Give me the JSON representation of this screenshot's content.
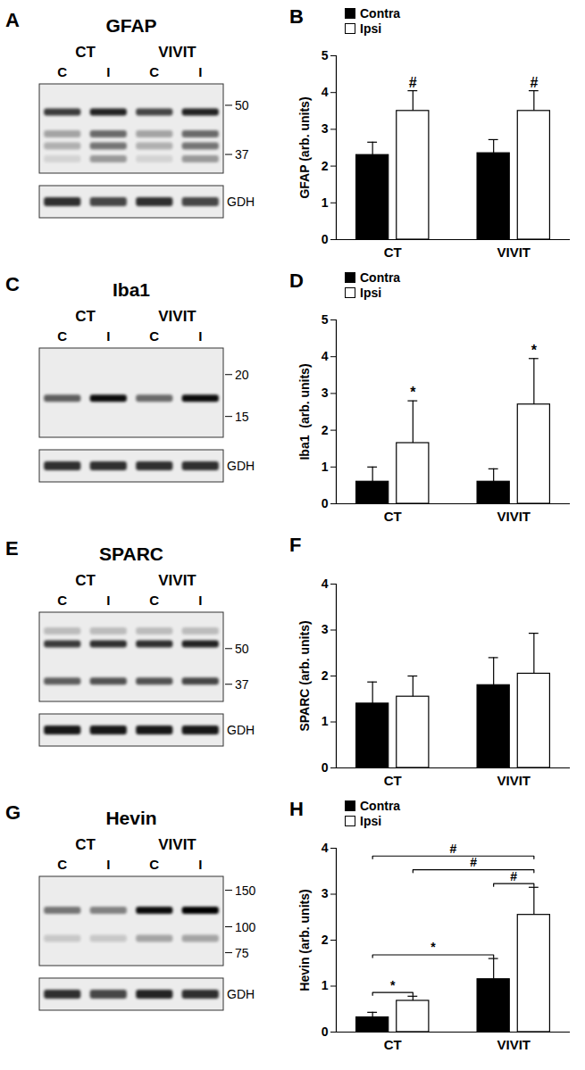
{
  "chart_data": [
    {
      "type": "bar",
      "title": "B",
      "categories": [
        "CT",
        "VIVIT"
      ],
      "series": [
        {
          "name": "Contra",
          "color": "#000000",
          "values": [
            2.3,
            2.35
          ],
          "errors": [
            0.35,
            0.37
          ]
        },
        {
          "name": "Ipsi",
          "color": "#ffffff",
          "values": [
            3.5,
            3.5
          ],
          "errors": [
            0.55,
            0.55
          ]
        }
      ],
      "ylabel": "GFAP (arb. units)",
      "ylim": [
        0,
        5
      ],
      "yticks": [
        0,
        1,
        2,
        3,
        4,
        5
      ],
      "legend": "top-left",
      "annotations": [
        {
          "text": "#",
          "category": 0,
          "series": 1
        },
        {
          "text": "#",
          "category": 1,
          "series": 1
        }
      ]
    },
    {
      "type": "bar",
      "title": "D",
      "categories": [
        "CT",
        "VIVIT"
      ],
      "series": [
        {
          "name": "Contra",
          "color": "#000000",
          "values": [
            0.6,
            0.6
          ],
          "errors": [
            0.4,
            0.35
          ]
        },
        {
          "name": "Ipsi",
          "color": "#ffffff",
          "values": [
            1.65,
            2.7
          ],
          "errors": [
            1.15,
            1.25
          ]
        }
      ],
      "ylabel": "Iba1  (arb. units)",
      "ylim": [
        0,
        5
      ],
      "yticks": [
        0,
        1,
        2,
        3,
        4,
        5
      ],
      "legend": "top-left",
      "annotations": [
        {
          "text": "*",
          "category": 0,
          "series": 1
        },
        {
          "text": "*",
          "category": 1,
          "series": 1
        }
      ]
    },
    {
      "type": "bar",
      "title": "F",
      "categories": [
        "CT",
        "VIVIT"
      ],
      "series": [
        {
          "color": "#000000",
          "values": [
            1.4,
            1.8
          ],
          "errors": [
            0.47,
            0.6
          ]
        },
        {
          "color": "#ffffff",
          "values": [
            1.55,
            2.05
          ],
          "errors": [
            0.45,
            0.88
          ]
        }
      ],
      "ylabel": "SPARC (arb. units)",
      "ylim": [
        0,
        4
      ],
      "yticks": [
        0,
        1,
        2,
        3,
        4
      ]
    },
    {
      "type": "bar",
      "title": "H",
      "categories": [
        "CT",
        "VIVIT"
      ],
      "series": [
        {
          "name": "Contra",
          "color": "#000000",
          "values": [
            0.32,
            1.15
          ],
          "errors": [
            0.11,
            0.45
          ]
        },
        {
          "name": "Ipsi",
          "color": "#ffffff",
          "values": [
            0.68,
            2.55
          ],
          "errors": [
            0.1,
            0.6
          ]
        }
      ],
      "ylabel": "Hevin (arb. units)",
      "ylim": [
        0,
        4
      ],
      "yticks": [
        0,
        1,
        2,
        3,
        4
      ],
      "legend": "top-left",
      "annotations": [
        {
          "text": "*",
          "from": {
            "category": 0,
            "series": 0
          },
          "to": {
            "category": 0,
            "series": 1
          }
        },
        {
          "text": "*",
          "from": {
            "category": 0,
            "series": 0
          },
          "to": {
            "category": 1,
            "series": 0
          }
        },
        {
          "text": "#",
          "from": {
            "category": 1,
            "series": 0
          },
          "to": {
            "category": 1,
            "series": 1
          }
        },
        {
          "text": "#",
          "from": {
            "category": 0,
            "series": 1
          },
          "to": {
            "category": 1,
            "series": 1
          }
        },
        {
          "text": "#",
          "from": {
            "category": 0,
            "series": 0
          },
          "to": {
            "category": 1,
            "series": 1
          }
        }
      ]
    }
  ],
  "blots": [
    {
      "panel": "A",
      "title": "GFAP",
      "groups": [
        "CT",
        "VIVIT"
      ],
      "lanes": [
        "C",
        "I",
        "C",
        "I"
      ],
      "mw_markers": [
        50,
        37
      ],
      "kda_range": [
        57,
        33
      ],
      "bands": [
        {
          "kda": 48,
          "intensity": [
            0.75,
            0.85,
            0.7,
            0.85
          ]
        },
        {
          "kda": 42,
          "intensity": [
            0.3,
            0.55,
            0.3,
            0.55
          ]
        },
        {
          "kda": 39,
          "intensity": [
            0.25,
            0.5,
            0.25,
            0.5
          ]
        },
        {
          "kda": 36,
          "intensity": [
            0.1,
            0.35,
            0.1,
            0.35
          ]
        }
      ],
      "loading_control": "GDH",
      "loading_intensity": [
        0.8,
        0.7,
        0.8,
        0.7
      ]
    },
    {
      "panel": "C",
      "title": "Iba1",
      "groups": [
        "CT",
        "VIVIT"
      ],
      "lanes": [
        "C",
        "I",
        "C",
        "I"
      ],
      "mw_markers": [
        20,
        15
      ],
      "kda_range": [
        24,
        13
      ],
      "bands": [
        {
          "kda": 17,
          "intensity": [
            0.6,
            0.95,
            0.55,
            0.95
          ]
        }
      ],
      "loading_control": "GDH",
      "loading_intensity": [
        0.8,
        0.8,
        0.8,
        0.8
      ]
    },
    {
      "panel": "E",
      "title": "SPARC",
      "groups": [
        "CT",
        "VIVIT"
      ],
      "lanes": [
        "C",
        "I",
        "C",
        "I"
      ],
      "mw_markers": [
        50,
        37
      ],
      "kda_range": [
        68,
        32
      ],
      "bands": [
        {
          "kda": 58,
          "intensity": [
            0.2,
            0.2,
            0.2,
            0.2
          ]
        },
        {
          "kda": 52,
          "intensity": [
            0.75,
            0.8,
            0.8,
            0.85
          ]
        },
        {
          "kda": 38,
          "intensity": [
            0.6,
            0.65,
            0.65,
            0.7
          ]
        }
      ],
      "loading_control": "GDH",
      "loading_intensity": [
        0.9,
        0.9,
        0.9,
        0.9
      ]
    },
    {
      "panel": "G",
      "title": "Hevin",
      "groups": [
        "CT",
        "VIVIT"
      ],
      "lanes": [
        "C",
        "I",
        "C",
        "I"
      ],
      "mw_markers": [
        150,
        100,
        75
      ],
      "kda_range": [
        175,
        65
      ],
      "bands": [
        {
          "kda": 120,
          "intensity": [
            0.5,
            0.45,
            0.95,
            1.0
          ]
        },
        {
          "kda": 88,
          "intensity": [
            0.15,
            0.15,
            0.3,
            0.3
          ]
        }
      ],
      "loading_control": "GDH",
      "loading_intensity": [
        0.8,
        0.7,
        0.85,
        0.8
      ]
    }
  ]
}
